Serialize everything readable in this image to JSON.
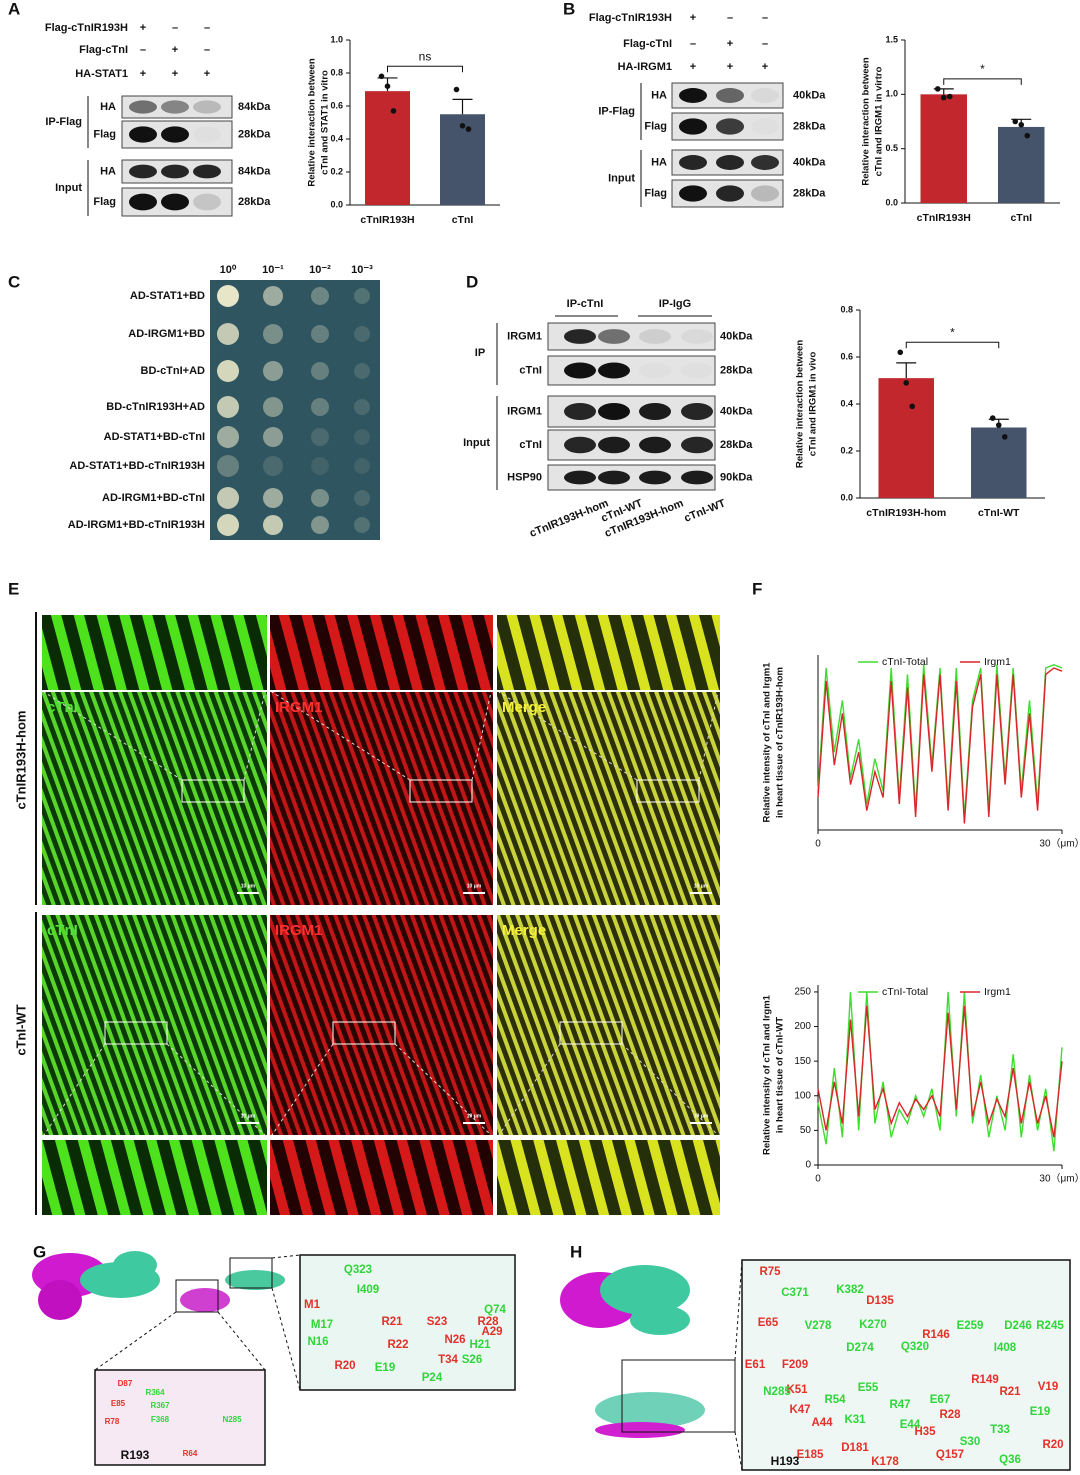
{
  "panel_labels": [
    "A",
    "B",
    "C",
    "D",
    "E",
    "F",
    "G",
    "H"
  ],
  "blot_A": {
    "rows": [
      {
        "label": "Flag-cTnIR193H",
        "signs": [
          "+",
          "–",
          "–"
        ]
      },
      {
        "label": "Flag-cTnI",
        "signs": [
          "–",
          "+",
          "–"
        ]
      },
      {
        "label": "HA-STAT1",
        "signs": [
          "+",
          "+",
          "+"
        ]
      }
    ],
    "groups": [
      "IP-Flag",
      "Input"
    ],
    "bands": [
      "HA",
      "Flag",
      "HA",
      "Flag"
    ],
    "sizes": [
      "84kDa",
      "28kDa",
      "84kDa",
      "28kDa"
    ]
  },
  "blot_B": {
    "rows": [
      {
        "label": "Flag-cTnIR193H",
        "signs": [
          "+",
          "–",
          "–"
        ]
      },
      {
        "label": "Flag-cTnI",
        "signs": [
          "–",
          "+",
          "–"
        ]
      },
      {
        "label": "HA-IRGM1",
        "signs": [
          "+",
          "+",
          "+"
        ]
      }
    ],
    "groups": [
      "IP-Flag",
      "Input"
    ],
    "bands": [
      "HA",
      "Flag",
      "HA",
      "Flag"
    ],
    "sizes": [
      "40kDa",
      "28kDa",
      "40kDa",
      "28kDa"
    ]
  },
  "yeast_C": {
    "dilutions": [
      "10⁰",
      "10⁻¹",
      "10⁻²",
      "10⁻³"
    ],
    "rows": [
      "AD-STAT1+BD",
      "AD-IRGM1+BD",
      "BD-cTnI+AD",
      "BD-cTnIR193H+AD",
      "AD-STAT1+BD-cTnI",
      "AD-STAT1+BD-cTnIR193H",
      "AD-IRGM1+BD-cTnI",
      "AD-IRGM1+BD-cTnIR193H"
    ]
  },
  "blot_D": {
    "headers": [
      "IP-cTnI",
      "IP-IgG"
    ],
    "groups": [
      "IP",
      "Input"
    ],
    "bands": [
      "IRGM1",
      "cTnI",
      "IRGM1",
      "cTnI",
      "HSP90"
    ],
    "sizes": [
      "40kDa",
      "28kDa",
      "40kDa",
      "28kDa",
      "90kDa"
    ],
    "lanes": [
      "cTnIR193H-hom",
      "cTnI-WT",
      "cTnIR193H-hom",
      "cTnI-WT"
    ]
  },
  "micro_E": {
    "rows": [
      "cTnIR193H-hom",
      "cTnI-WT"
    ],
    "channels": [
      "cTnI",
      "IRGM1",
      "Merge"
    ],
    "scale_bar": "10 μm"
  },
  "chart_data": [
    {
      "type": "bar",
      "y_label": [
        "Relative interaction between",
        "cTnI and STAT1 in vitro"
      ],
      "categories": [
        "cTnIR193H",
        "cTnI"
      ],
      "values": [
        0.69,
        0.55
      ],
      "errors": [
        0.08,
        0.09
      ],
      "points": [
        [
          0.78,
          0.72,
          0.57
        ],
        [
          0.7,
          0.48,
          0.46
        ]
      ],
      "colors": [
        "#c1272d",
        "#46546b"
      ],
      "ylim": [
        0,
        1
      ],
      "yticks": [
        {
          "value": 0,
          "label": "0.0"
        },
        0.2,
        0.4,
        0.6,
        0.8,
        {
          "value": 1,
          "label": "1.0"
        }
      ],
      "significance": "ns"
    },
    {
      "type": "bar",
      "y_label": [
        "Relative interaction between",
        "cTnI and IRGM1 in virtro"
      ],
      "categories": [
        "cTnIR193H",
        "cTnI"
      ],
      "values": [
        1.0,
        0.7
      ],
      "errors": [
        0.05,
        0.07
      ],
      "points": [
        [
          1.05,
          0.97,
          0.98
        ],
        [
          0.75,
          0.72,
          0.62
        ]
      ],
      "colors": [
        "#c1272d",
        "#46546b"
      ],
      "ylim": [
        0,
        1.5
      ],
      "yticks": [
        {
          "value": 0,
          "label": "0.0"
        },
        0.5,
        {
          "value": 1,
          "label": "1.0"
        },
        1.5
      ],
      "significance": "*"
    },
    {
      "type": "bar",
      "y_label": [
        "Relative interaction between",
        "cTnI and IRGM1 in vivo"
      ],
      "categories": [
        "cTnIR193H-hom",
        "cTnI-WT"
      ],
      "values": [
        0.51,
        0.3
      ],
      "errors": [
        0.065,
        0.035
      ],
      "points": [
        [
          0.62,
          0.49,
          0.39
        ],
        [
          0.34,
          0.31,
          0.26
        ]
      ],
      "colors": [
        "#c1272d",
        "#46546b"
      ],
      "ylim": [
        0,
        0.8
      ],
      "yticks": [
        {
          "value": 0,
          "label": "0.0"
        },
        0.2,
        0.4,
        0.6,
        0.8
      ],
      "significance": "*"
    },
    {
      "type": "line",
      "y_label": [
        "Relative intensity of cTnI and Irgm1",
        "in heart tissue of cTnIR193H-hom"
      ],
      "x": [
        0,
        1,
        2,
        3,
        4,
        5,
        6,
        7,
        8,
        9,
        10,
        11,
        12,
        13,
        14,
        15,
        16,
        17,
        18,
        19,
        20,
        21,
        22,
        23,
        24,
        25,
        26,
        27,
        28,
        29,
        30
      ],
      "series": [
        {
          "name": "cTnI-Total",
          "color": "#3ddc2e",
          "values": [
            60,
            250,
            120,
            200,
            80,
            140,
            40,
            110,
            60,
            250,
            50,
            240,
            30,
            255,
            100,
            250,
            40,
            250,
            20,
            200,
            250,
            30,
            255,
            80,
            250,
            60,
            200,
            40,
            250,
            255,
            250
          ]
        },
        {
          "name": "Irgm1",
          "color": "#d9262b",
          "values": [
            50,
            230,
            100,
            180,
            70,
            120,
            30,
            90,
            50,
            230,
            40,
            220,
            20,
            240,
            90,
            240,
            30,
            230,
            10,
            190,
            240,
            20,
            240,
            70,
            240,
            50,
            180,
            30,
            240,
            250,
            245
          ]
        }
      ],
      "xlim": [
        0,
        30
      ],
      "ylim": [
        0,
        270
      ],
      "xticks": [
        0,
        {
          "value": 30,
          "label": "30（μm）"
        }
      ]
    },
    {
      "type": "line",
      "y_label": [
        "Relative intensity of cTnI and Irgm1",
        "in heart tissue of cTnI-WT"
      ],
      "x": [
        0,
        1,
        2,
        3,
        4,
        5,
        6,
        7,
        8,
        9,
        10,
        11,
        12,
        13,
        14,
        15,
        16,
        17,
        18,
        19,
        20,
        21,
        22,
        23,
        24,
        25,
        26,
        27,
        28,
        29,
        30
      ],
      "series": [
        {
          "name": "cTnI-Total",
          "color": "#3ddc2e",
          "values": [
            90,
            30,
            140,
            40,
            250,
            50,
            250,
            60,
            120,
            40,
            80,
            60,
            100,
            70,
            110,
            50,
            250,
            70,
            250,
            60,
            130,
            40,
            100,
            50,
            160,
            40,
            130,
            50,
            110,
            20,
            170
          ]
        },
        {
          "name": "Irgm1",
          "color": "#d9262b",
          "values": [
            110,
            50,
            120,
            60,
            210,
            70,
            230,
            80,
            110,
            60,
            90,
            70,
            95,
            80,
            100,
            70,
            220,
            80,
            230,
            70,
            120,
            60,
            95,
            70,
            140,
            60,
            120,
            60,
            100,
            40,
            150
          ]
        }
      ],
      "xlim": [
        0,
        30
      ],
      "ylim": [
        0,
        260
      ],
      "xticks": [
        0,
        {
          "value": 30,
          "label": "30（μm）"
        }
      ],
      "yticks": [
        0,
        50,
        100,
        150,
        200,
        250
      ]
    }
  ],
  "structure_G": {
    "red": [
      "M1",
      "R21",
      "S23",
      "R28",
      "R22",
      "N26",
      "A29",
      "R20",
      "T34",
      "D87",
      "E85",
      "R78",
      "R64"
    ],
    "green": [
      "Q323",
      "I409",
      "M17",
      "N16",
      "E19",
      "H21",
      "S26",
      "P24",
      "Q74",
      "R364",
      "R367",
      "F368",
      "N285"
    ],
    "black": [
      "R193"
    ]
  },
  "structure_H": {
    "red": [
      "R75",
      "E65",
      "D135",
      "E61",
      "F209",
      "R146",
      "K51",
      "K47",
      "A44",
      "E185",
      "D181",
      "K178",
      "H35",
      "Q157",
      "R28",
      "R149",
      "R21",
      "V19",
      "R20"
    ],
    "green": [
      "C371",
      "K382",
      "V278",
      "K270",
      "D274",
      "E259",
      "D246",
      "R245",
      "N285",
      "Q320",
      "I408",
      "R54",
      "E55",
      "R47",
      "E67",
      "K31",
      "E44",
      "S30",
      "T33",
      "E19",
      "Q36"
    ],
    "black": [
      "H193"
    ]
  }
}
